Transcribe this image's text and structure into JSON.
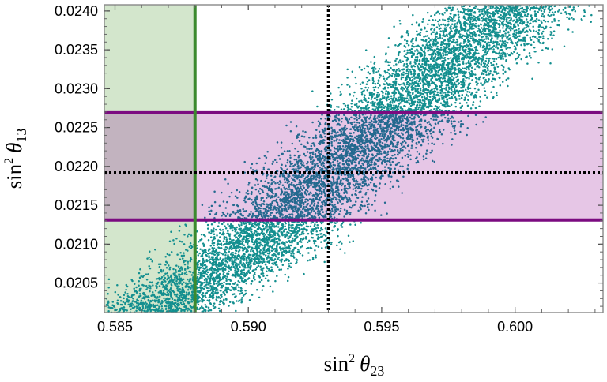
{
  "chart_data": {
    "type": "scatter",
    "xlabel": {
      "base": "sin",
      "sup": "2",
      "symbol": "θ",
      "sub": "23"
    },
    "ylabel": {
      "base": "sin",
      "sup": "2",
      "symbol": "θ",
      "sub": "13"
    },
    "xlim": [
      0.5846,
      0.6033
    ],
    "ylim": [
      0.02012,
      0.02408
    ],
    "x_ticks": [
      0.585,
      0.59,
      0.595,
      0.6
    ],
    "x_tick_labels": [
      "0.585",
      "0.590",
      "0.595",
      "0.600"
    ],
    "y_ticks": [
      0.0205,
      0.021,
      0.0215,
      0.022,
      0.0225,
      0.023,
      0.0235,
      0.024
    ],
    "y_tick_labels": [
      "0.0205",
      "0.0210",
      "0.0215",
      "0.0220",
      "0.0225",
      "0.0230",
      "0.0235",
      "0.0240"
    ],
    "grid": false,
    "colors": {
      "points": "#138f8f",
      "points_in_band": "#24698f",
      "band_fill": "#e6c6e6",
      "band_edge": "#7b0b80",
      "region_fill": "#d3e6cc",
      "region_edge": "#3b8a2e",
      "overlap_fill": "#c2b3bf",
      "reference_line": "#000000"
    },
    "horizontal_band": {
      "y_min": 0.02131,
      "y_max": 0.02269
    },
    "excluded_region": {
      "x_max": 0.588
    },
    "reference_lines": {
      "x": 0.593,
      "y": 0.02192
    },
    "scatter_cloud": {
      "description_ridge": [
        [
          0.5866,
          0.02015
        ],
        [
          0.59,
          0.0209
        ],
        [
          0.593,
          0.0219
        ],
        [
          0.596,
          0.0228
        ],
        [
          0.598,
          0.0235
        ],
        [
          0.6,
          0.0241
        ]
      ],
      "x_spread": 0.003,
      "point_count": 9000
    }
  }
}
